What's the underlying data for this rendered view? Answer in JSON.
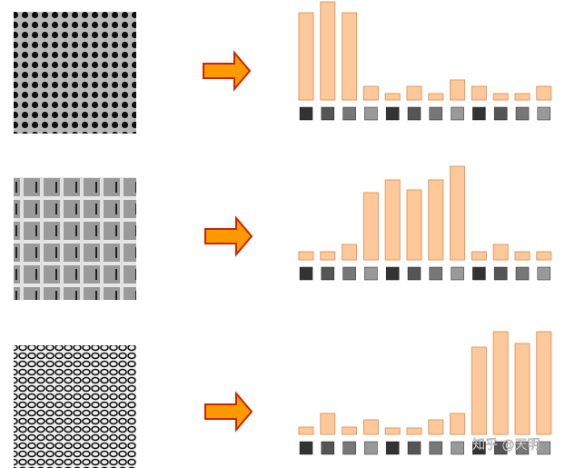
{
  "histograms": [
    {
      "values": [
        96,
        108,
        96,
        15,
        7,
        15,
        7,
        22,
        15,
        7,
        7,
        15
      ]
    },
    {
      "values": [
        9,
        9,
        17,
        74,
        88,
        77,
        88,
        103,
        9,
        17,
        9,
        9
      ]
    },
    {
      "values": [
        8,
        23,
        8,
        16,
        7,
        7,
        16,
        23,
        96,
        113,
        100,
        113
      ]
    }
  ],
  "bar_color": "#fdc89a",
  "watermark": "知乎 @天明"
}
